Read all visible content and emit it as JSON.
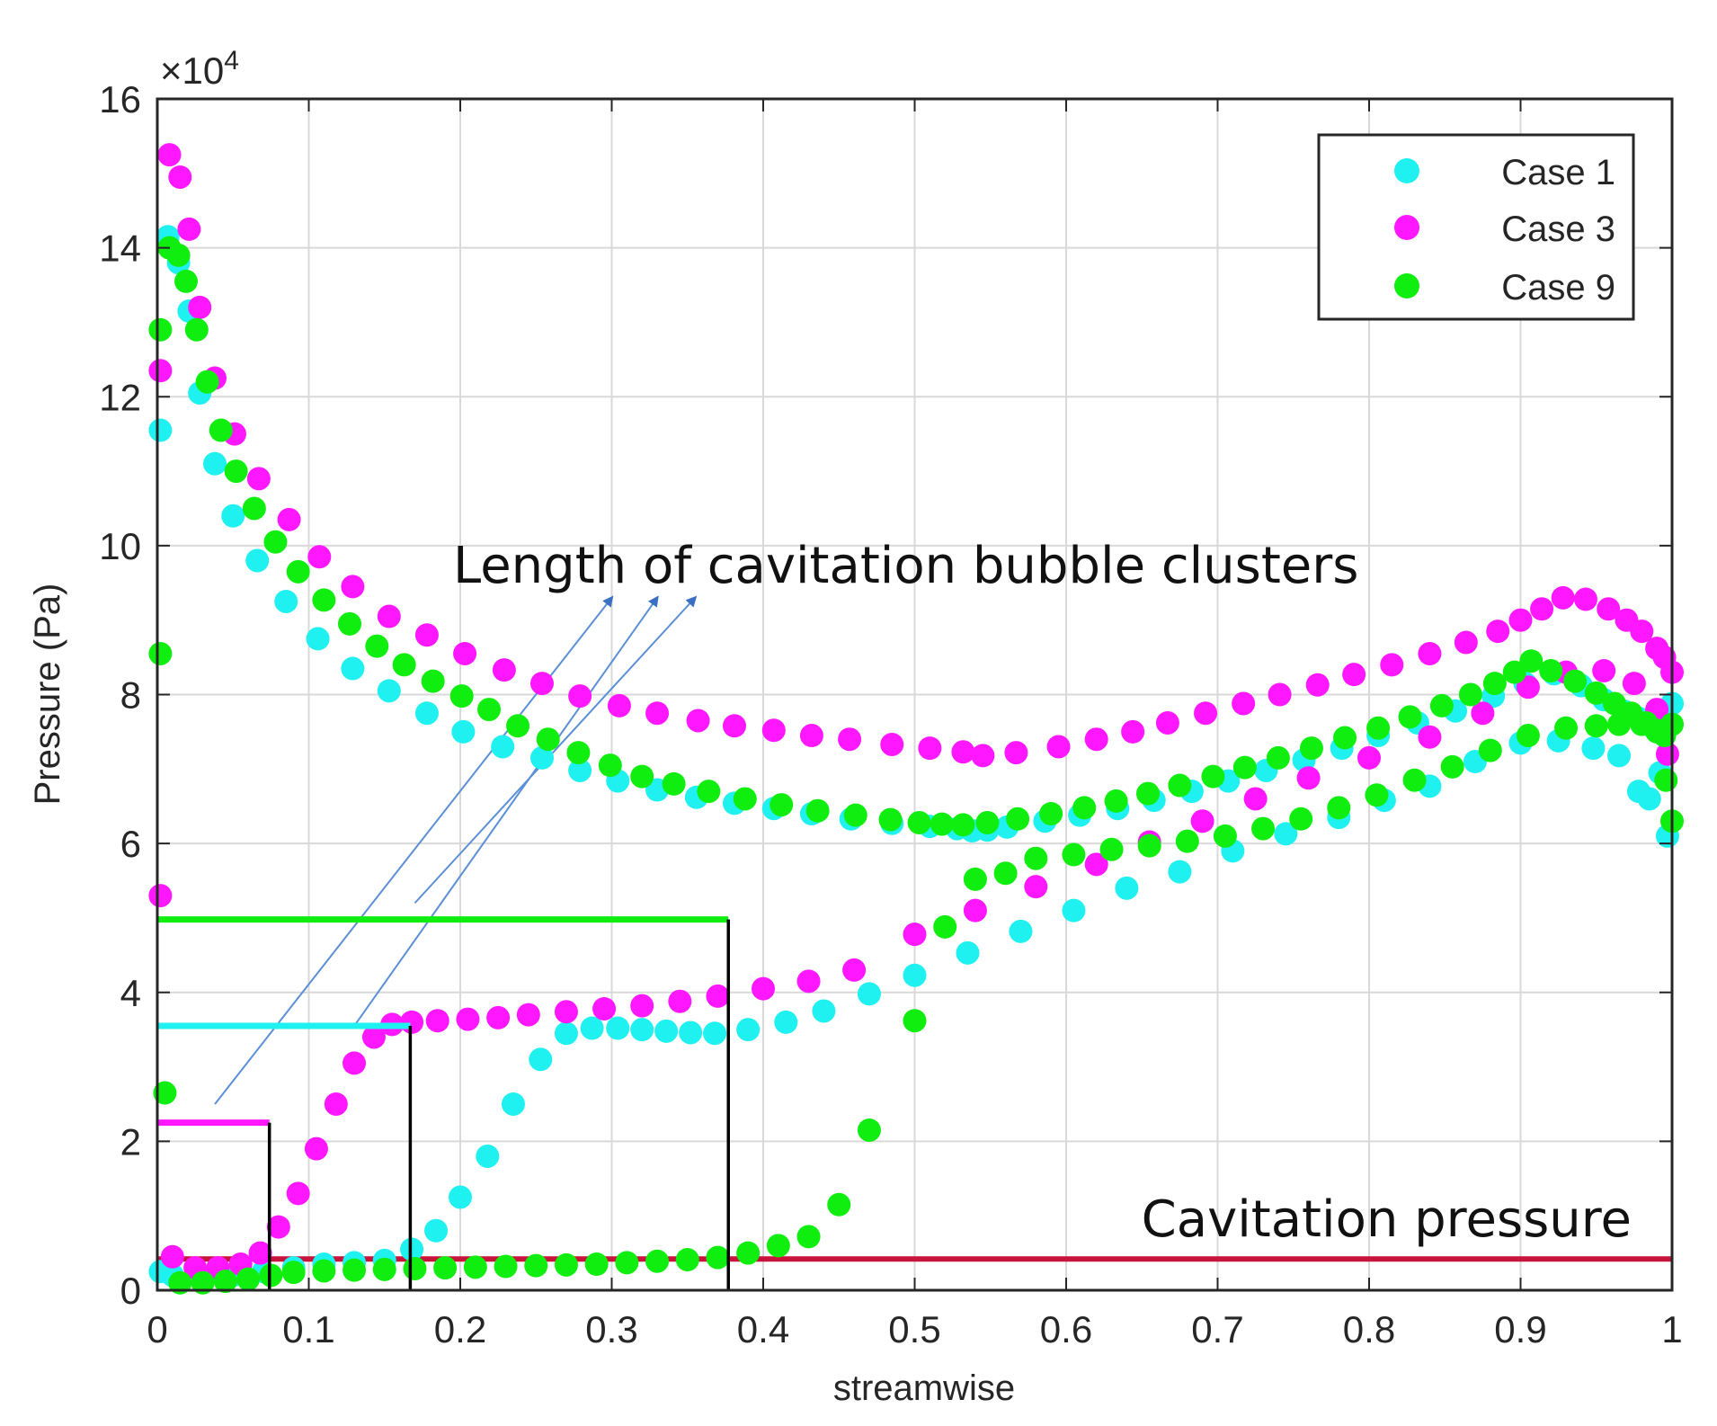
{
  "chart_data": {
    "type": "scatter",
    "title": "",
    "xlabel": "streamwise",
    "ylabel": "Pressure (Pa)",
    "y_exponent_label": "×10",
    "y_exponent_power": "4",
    "xlim": [
      0,
      1
    ],
    "ylim": [
      0,
      16
    ],
    "y_scale_note": "values in units of 10^4 Pa",
    "grid": true,
    "legend_position": "top-right",
    "x_ticks": [
      "0",
      "0.1",
      "0.2",
      "0.3",
      "0.4",
      "0.5",
      "0.6",
      "0.7",
      "0.8",
      "0.9",
      "1"
    ],
    "y_ticks": [
      "0",
      "2",
      "4",
      "6",
      "8",
      "10",
      "12",
      "14",
      "16"
    ],
    "series": [
      {
        "name": "Case 1",
        "color": "#1ff0f0",
        "upper": {
          "x": [
            0.002,
            0.007,
            0.014,
            0.021,
            0.028,
            0.038,
            0.05,
            0.066,
            0.085,
            0.106,
            0.129,
            0.153,
            0.178,
            0.202,
            0.228,
            0.254,
            0.279,
            0.304,
            0.33,
            0.356,
            0.381,
            0.407,
            0.432,
            0.458,
            0.485,
            0.51,
            0.528,
            0.538,
            0.548,
            0.561,
            0.586,
            0.609,
            0.634,
            0.658,
            0.683,
            0.707,
            0.732,
            0.757,
            0.782,
            0.806,
            0.832,
            0.857,
            0.882,
            0.903,
            0.922,
            0.94,
            0.955,
            0.968,
            0.978,
            0.988,
            0.995,
            1.0
          ],
          "y": [
            11.55,
            14.15,
            13.8,
            13.15,
            12.05,
            11.1,
            10.4,
            9.8,
            9.25,
            8.75,
            8.35,
            8.05,
            7.75,
            7.5,
            7.3,
            7.15,
            6.98,
            6.84,
            6.72,
            6.62,
            6.54,
            6.47,
            6.4,
            6.33,
            6.27,
            6.23,
            6.2,
            6.17,
            6.18,
            6.22,
            6.3,
            6.38,
            6.47,
            6.58,
            6.7,
            6.84,
            6.98,
            7.12,
            7.28,
            7.45,
            7.62,
            7.78,
            7.98,
            8.15,
            8.28,
            8.12,
            7.93,
            7.78,
            7.68,
            7.55,
            7.72,
            7.88
          ]
        },
        "lower": {
          "x": [
            0.002,
            0.01,
            0.03,
            0.05,
            0.07,
            0.09,
            0.11,
            0.13,
            0.15,
            0.168,
            0.184,
            0.2,
            0.218,
            0.235,
            0.253,
            0.27,
            0.287,
            0.304,
            0.32,
            0.336,
            0.352,
            0.368,
            0.39,
            0.415,
            0.44,
            0.47,
            0.5,
            0.535,
            0.57,
            0.605,
            0.64,
            0.675,
            0.71,
            0.745,
            0.78,
            0.81,
            0.84,
            0.87,
            0.9,
            0.925,
            0.948,
            0.965,
            0.978,
            0.985,
            0.992,
            0.997
          ],
          "y": [
            0.25,
            0.2,
            0.18,
            0.2,
            0.25,
            0.3,
            0.35,
            0.37,
            0.4,
            0.55,
            0.8,
            1.25,
            1.8,
            2.5,
            3.1,
            3.45,
            3.52,
            3.52,
            3.5,
            3.48,
            3.46,
            3.45,
            3.5,
            3.6,
            3.75,
            3.98,
            4.23,
            4.53,
            4.82,
            5.1,
            5.4,
            5.62,
            5.9,
            6.13,
            6.35,
            6.58,
            6.77,
            7.1,
            7.35,
            7.38,
            7.28,
            7.18,
            6.7,
            6.6,
            6.95,
            6.1
          ]
        }
      },
      {
        "name": "Case 3",
        "color": "#ff18ff",
        "upper": {
          "x": [
            0.002,
            0.008,
            0.015,
            0.021,
            0.028,
            0.038,
            0.051,
            0.067,
            0.087,
            0.107,
            0.129,
            0.153,
            0.178,
            0.203,
            0.229,
            0.254,
            0.279,
            0.305,
            0.33,
            0.357,
            0.381,
            0.407,
            0.432,
            0.457,
            0.485,
            0.51,
            0.532,
            0.545,
            0.567,
            0.595,
            0.62,
            0.644,
            0.667,
            0.692,
            0.717,
            0.741,
            0.766,
            0.79,
            0.815,
            0.84,
            0.864,
            0.885,
            0.9,
            0.914,
            0.928,
            0.943,
            0.958,
            0.97,
            0.98,
            0.99,
            0.995,
            1.0
          ],
          "y": [
            12.35,
            15.25,
            14.95,
            14.25,
            13.2,
            12.25,
            11.5,
            10.9,
            10.35,
            9.85,
            9.45,
            9.05,
            8.8,
            8.55,
            8.33,
            8.15,
            7.98,
            7.85,
            7.75,
            7.65,
            7.58,
            7.52,
            7.45,
            7.4,
            7.33,
            7.28,
            7.23,
            7.18,
            7.22,
            7.3,
            7.4,
            7.5,
            7.62,
            7.75,
            7.88,
            8.0,
            8.13,
            8.27,
            8.4,
            8.55,
            8.7,
            8.85,
            9.0,
            9.15,
            9.3,
            9.28,
            9.15,
            9.0,
            8.85,
            8.62,
            8.5,
            8.3
          ]
        },
        "lower": {
          "x": [
            0.002,
            0.01,
            0.025,
            0.04,
            0.055,
            0.068,
            0.08,
            0.093,
            0.105,
            0.118,
            0.13,
            0.143,
            0.155,
            0.168,
            0.185,
            0.205,
            0.225,
            0.245,
            0.27,
            0.295,
            0.32,
            0.345,
            0.37,
            0.4,
            0.43,
            0.46,
            0.5,
            0.54,
            0.58,
            0.62,
            0.655,
            0.69,
            0.725,
            0.76,
            0.8,
            0.84,
            0.875,
            0.905,
            0.93,
            0.955,
            0.975,
            0.99,
            0.997
          ],
          "y": [
            5.3,
            0.45,
            0.3,
            0.3,
            0.35,
            0.5,
            0.85,
            1.3,
            1.9,
            2.5,
            3.05,
            3.4,
            3.57,
            3.6,
            3.62,
            3.64,
            3.66,
            3.7,
            3.74,
            3.78,
            3.82,
            3.88,
            3.95,
            4.05,
            4.15,
            4.3,
            4.78,
            5.1,
            5.42,
            5.72,
            6.02,
            6.3,
            6.6,
            6.88,
            7.15,
            7.43,
            7.75,
            8.1,
            8.3,
            8.32,
            8.15,
            7.8,
            7.2
          ]
        }
      },
      {
        "name": "Case 9",
        "color": "#10ee10",
        "upper": {
          "x": [
            0.002,
            0.008,
            0.014,
            0.019,
            0.026,
            0.033,
            0.042,
            0.052,
            0.064,
            0.078,
            0.093,
            0.11,
            0.127,
            0.145,
            0.163,
            0.182,
            0.201,
            0.219,
            0.238,
            0.258,
            0.278,
            0.299,
            0.32,
            0.341,
            0.364,
            0.388,
            0.412,
            0.436,
            0.461,
            0.484,
            0.503,
            0.518,
            0.532,
            0.548,
            0.568,
            0.59,
            0.612,
            0.633,
            0.654,
            0.675,
            0.697,
            0.718,
            0.74,
            0.762,
            0.784,
            0.806,
            0.827,
            0.848,
            0.867,
            0.883,
            0.896,
            0.907,
            0.92,
            0.936,
            0.95,
            0.962,
            0.973,
            0.983,
            0.99,
            0.995,
            1.0
          ],
          "y": [
            12.9,
            14.0,
            13.9,
            13.55,
            12.9,
            12.2,
            11.55,
            11.0,
            10.5,
            10.05,
            9.65,
            9.27,
            8.95,
            8.65,
            8.4,
            8.18,
            7.98,
            7.8,
            7.58,
            7.4,
            7.22,
            7.05,
            6.9,
            6.8,
            6.7,
            6.6,
            6.52,
            6.44,
            6.38,
            6.32,
            6.28,
            6.26,
            6.25,
            6.28,
            6.33,
            6.4,
            6.48,
            6.57,
            6.67,
            6.78,
            6.9,
            7.02,
            7.15,
            7.28,
            7.42,
            7.55,
            7.7,
            7.85,
            8.0,
            8.15,
            8.3,
            8.45,
            8.32,
            8.18,
            8.02,
            7.88,
            7.75,
            7.62,
            7.52,
            7.45,
            7.6
          ]
        },
        "lower": {
          "x": [
            0.002,
            0.005,
            0.015,
            0.03,
            0.045,
            0.06,
            0.075,
            0.09,
            0.11,
            0.13,
            0.15,
            0.17,
            0.19,
            0.21,
            0.23,
            0.25,
            0.27,
            0.29,
            0.31,
            0.33,
            0.35,
            0.37,
            0.39,
            0.41,
            0.43,
            0.45,
            0.47,
            0.5,
            0.52,
            0.54,
            0.56,
            0.58,
            0.605,
            0.63,
            0.655,
            0.68,
            0.705,
            0.73,
            0.755,
            0.78,
            0.805,
            0.83,
            0.855,
            0.88,
            0.905,
            0.93,
            0.95,
            0.965,
            0.98,
            0.99,
            0.996,
            1.0
          ],
          "y": [
            8.55,
            2.65,
            0.1,
            0.1,
            0.12,
            0.15,
            0.2,
            0.24,
            0.26,
            0.27,
            0.28,
            0.29,
            0.3,
            0.31,
            0.32,
            0.33,
            0.34,
            0.35,
            0.37,
            0.39,
            0.41,
            0.44,
            0.5,
            0.6,
            0.72,
            1.15,
            2.15,
            3.62,
            4.88,
            5.52,
            5.6,
            5.8,
            5.85,
            5.92,
            5.97,
            6.03,
            6.1,
            6.2,
            6.33,
            6.48,
            6.65,
            6.85,
            7.03,
            7.25,
            7.45,
            7.55,
            7.58,
            7.6,
            7.6,
            7.5,
            6.85,
            6.3
          ]
        }
      }
    ],
    "annotations": {
      "length_title": "Length of cavitation bubble clusters",
      "cavitation_label": "Cavitation pressure",
      "cavitation_level": 0.42,
      "cavitation_color": "#c8143c",
      "bracket_color": "#000000",
      "arrow_color": "#5b8fd6",
      "brackets": [
        {
          "case": "Case 3",
          "color": "#ff18ff",
          "level": 2.25,
          "end": 0.074
        },
        {
          "case": "Case 1",
          "color": "#1ff0f0",
          "level": 3.55,
          "end": 0.167
        },
        {
          "case": "Case 9",
          "color": "#10ee10",
          "level": 4.98,
          "end": 0.377
        }
      ],
      "arrows": [
        {
          "from": [
            0.038,
            2.5
          ],
          "to": [
            0.3,
            9.3
          ]
        },
        {
          "from": [
            0.13,
            3.55
          ],
          "to": [
            0.33,
            9.3
          ]
        },
        {
          "from": [
            0.17,
            5.2
          ],
          "to": [
            0.355,
            9.3
          ]
        }
      ]
    }
  }
}
